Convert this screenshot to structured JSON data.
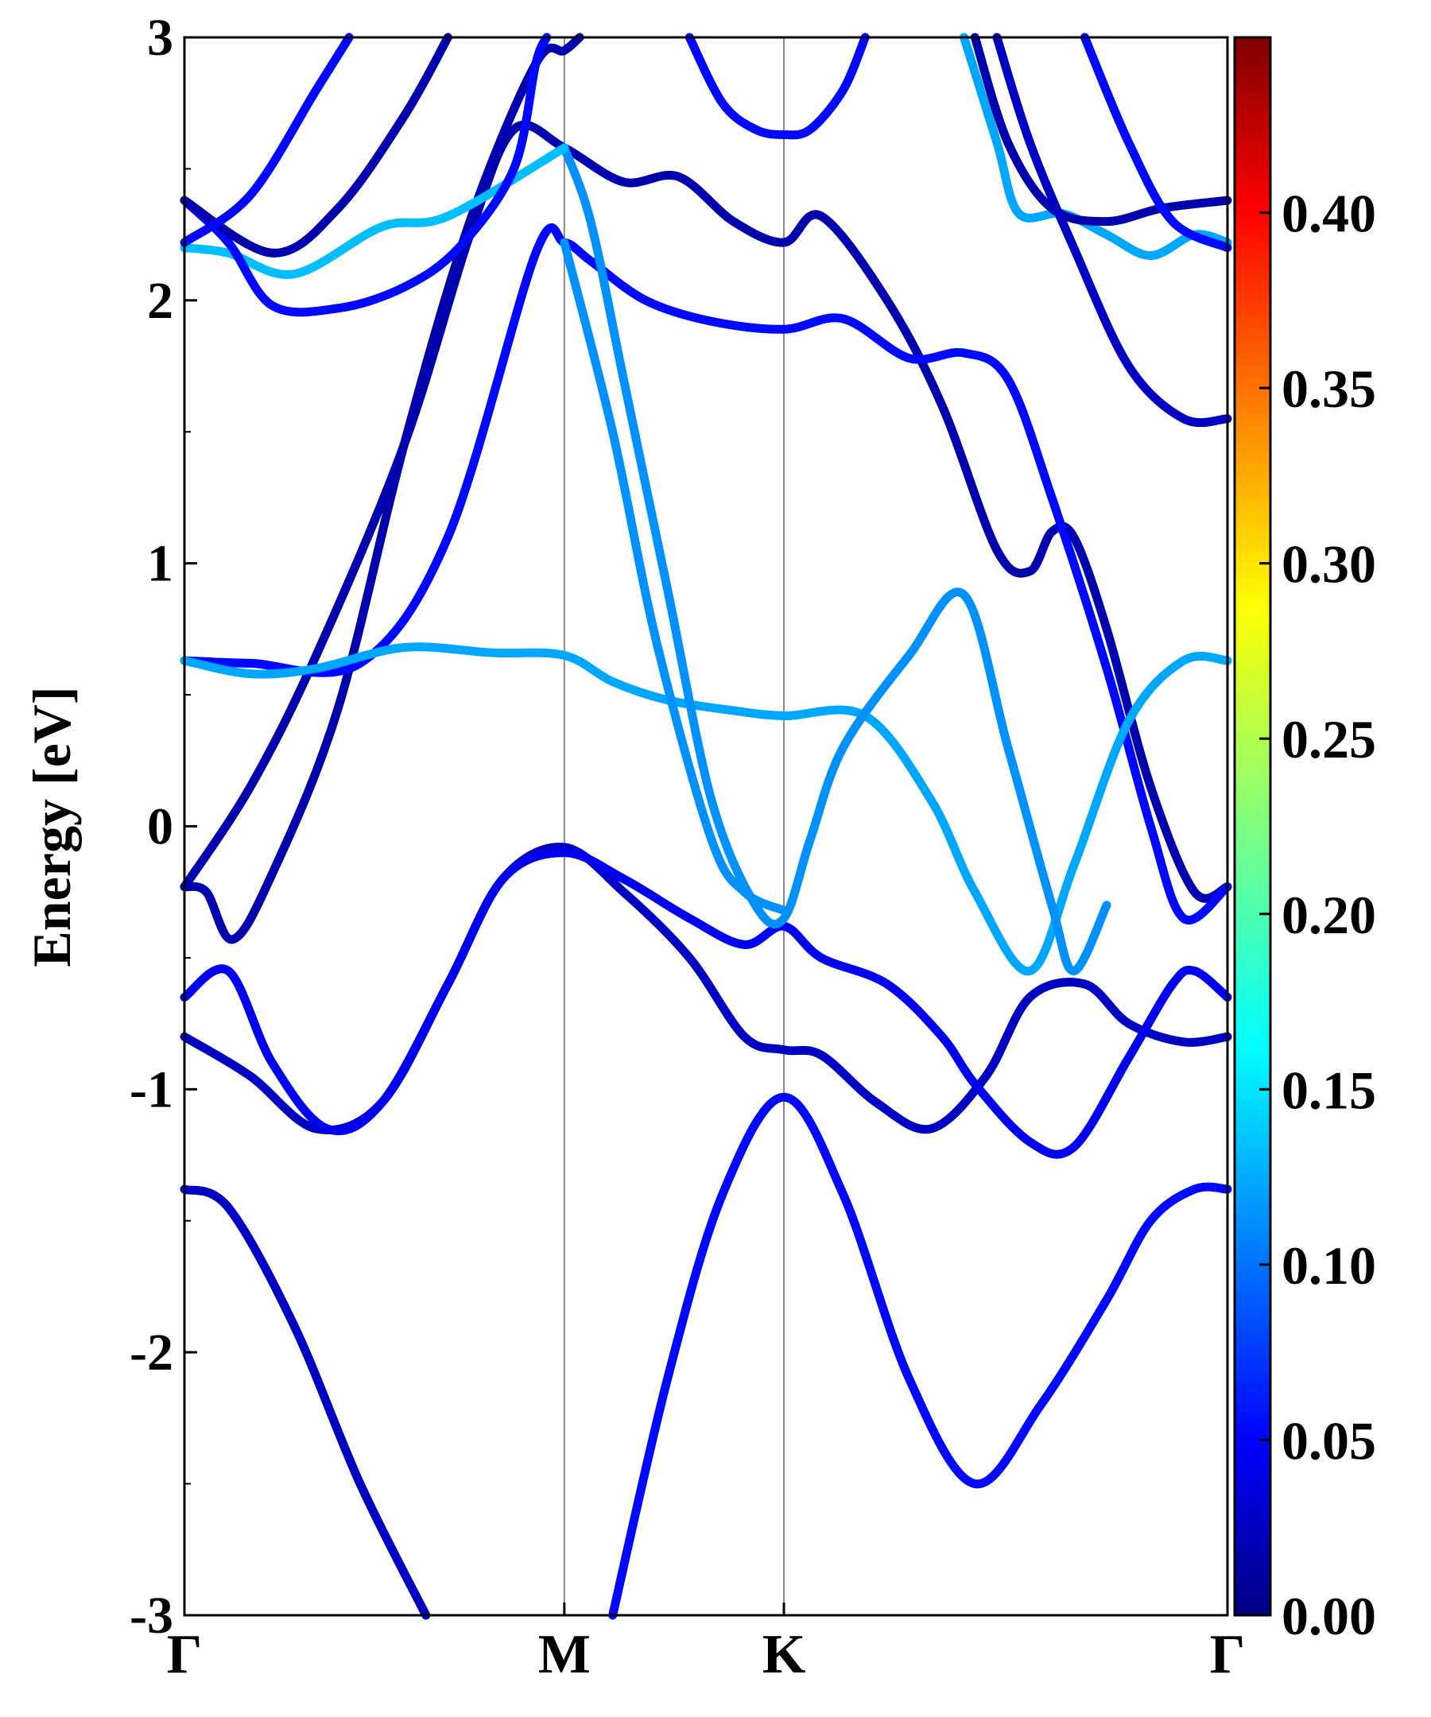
{
  "chart_data": {
    "type": "line",
    "title": "",
    "xlabel": "",
    "ylabel": "Energy [eV]",
    "ylim": [
      -3,
      3
    ],
    "yticks": [
      {
        "v": 3,
        "label": "3"
      },
      {
        "v": 2,
        "label": "2"
      },
      {
        "v": 1,
        "label": "1"
      },
      {
        "v": 0,
        "label": "0"
      },
      {
        "v": -1,
        "label": "-1"
      },
      {
        "v": -2,
        "label": "-2"
      },
      {
        "v": -3,
        "label": "-3"
      }
    ],
    "xlim": [
      0,
      4.75
    ],
    "high_symmetry_points": [
      {
        "label": "Γ",
        "x": 0
      },
      {
        "label": "M",
        "x": 1.73
      },
      {
        "label": "K",
        "x": 2.73
      },
      {
        "label": "Γ",
        "x": 4.75
      }
    ],
    "grid": false,
    "colorbar": {
      "colormap": "jet",
      "range": [
        0,
        0.45
      ],
      "ticks": [
        {
          "v": 0.0,
          "label": "0.00"
        },
        {
          "v": 0.05,
          "label": "0.05"
        },
        {
          "v": 0.1,
          "label": "0.10"
        },
        {
          "v": 0.15,
          "label": "0.15"
        },
        {
          "v": 0.2,
          "label": "0.20"
        },
        {
          "v": 0.25,
          "label": "0.25"
        },
        {
          "v": 0.3,
          "label": "0.30"
        },
        {
          "v": 0.35,
          "label": "0.35"
        },
        {
          "v": 0.4,
          "label": "0.40"
        }
      ]
    },
    "series": [
      {
        "points": [
          [
            0,
            -1.38
          ],
          [
            0.2,
            -1.45
          ],
          [
            0.5,
            -1.9
          ],
          [
            0.8,
            -2.5
          ],
          [
            1.1,
            -3.0
          ]
        ],
        "weight": 0.03
      },
      {
        "points": [
          [
            1.95,
            -3.0
          ],
          [
            2.2,
            -2.1
          ],
          [
            2.45,
            -1.4
          ],
          [
            2.73,
            -1.03
          ],
          [
            3.0,
            -1.4
          ],
          [
            3.3,
            -2.1
          ],
          [
            3.6,
            -2.5
          ],
          [
            3.9,
            -2.2
          ],
          [
            4.2,
            -1.8
          ],
          [
            4.4,
            -1.5
          ],
          [
            4.6,
            -1.38
          ],
          [
            4.75,
            -1.38
          ]
        ],
        "weight": 0.06
      },
      {
        "points": [
          [
            0,
            -0.8
          ],
          [
            0.3,
            -0.95
          ],
          [
            0.6,
            -1.15
          ],
          [
            0.9,
            -1.05
          ],
          [
            1.2,
            -0.6
          ],
          [
            1.45,
            -0.2
          ],
          [
            1.73,
            -0.08
          ],
          [
            2.0,
            -0.25
          ],
          [
            2.3,
            -0.5
          ],
          [
            2.55,
            -0.8
          ],
          [
            2.73,
            -0.85
          ],
          [
            2.9,
            -0.87
          ],
          [
            3.15,
            -1.05
          ],
          [
            3.4,
            -1.15
          ],
          [
            3.65,
            -0.95
          ],
          [
            3.85,
            -0.65
          ],
          [
            4.1,
            -0.6
          ],
          [
            4.3,
            -0.75
          ],
          [
            4.55,
            -0.82
          ],
          [
            4.75,
            -0.8
          ]
        ],
        "weight": 0.03
      },
      {
        "points": [
          [
            0,
            -0.65
          ],
          [
            0.2,
            -0.55
          ],
          [
            0.4,
            -0.9
          ],
          [
            0.65,
            -1.15
          ],
          [
            0.9,
            -1.05
          ],
          [
            1.2,
            -0.6
          ],
          [
            1.45,
            -0.2
          ],
          [
            1.73,
            -0.1
          ],
          [
            2.0,
            -0.2
          ],
          [
            2.3,
            -0.35
          ],
          [
            2.55,
            -0.45
          ],
          [
            2.73,
            -0.38
          ],
          [
            2.9,
            -0.5
          ],
          [
            3.2,
            -0.6
          ],
          [
            3.45,
            -0.8
          ],
          [
            3.6,
            -0.98
          ],
          [
            3.85,
            -1.2
          ],
          [
            4.05,
            -1.22
          ],
          [
            4.3,
            -0.88
          ],
          [
            4.5,
            -0.6
          ],
          [
            4.6,
            -0.55
          ],
          [
            4.75,
            -0.65
          ]
        ],
        "weight": 0.05
      },
      {
        "points": [
          [
            0,
            -0.23
          ],
          [
            0.1,
            -0.25
          ],
          [
            0.22,
            -0.43
          ],
          [
            0.4,
            -0.18
          ],
          [
            0.7,
            0.45
          ],
          [
            1.0,
            1.45
          ],
          [
            1.3,
            2.3
          ],
          [
            1.6,
            2.9
          ],
          [
            1.73,
            2.95
          ],
          [
            1.8,
            3.0
          ]
        ],
        "weight": 0.02
      },
      {
        "points": [
          [
            0,
            -0.23
          ],
          [
            0.3,
            0.15
          ],
          [
            0.6,
            0.65
          ],
          [
            1.0,
            1.45
          ],
          [
            1.3,
            2.25
          ],
          [
            1.5,
            2.65
          ],
          [
            1.73,
            2.58
          ],
          [
            2.0,
            2.45
          ],
          [
            2.25,
            2.47
          ],
          [
            2.5,
            2.3
          ],
          [
            2.73,
            2.22
          ],
          [
            2.9,
            2.32
          ],
          [
            3.2,
            2.0
          ],
          [
            3.45,
            1.6
          ],
          [
            3.7,
            1.05
          ],
          [
            3.85,
            0.97
          ],
          [
            3.95,
            1.12
          ],
          [
            4.05,
            1.1
          ],
          [
            4.2,
            0.75
          ],
          [
            4.4,
            0.15
          ],
          [
            4.6,
            -0.25
          ],
          [
            4.75,
            -0.23
          ]
        ],
        "weight": 0.02
      },
      {
        "points": [
          [
            0,
            0.63
          ],
          [
            0.3,
            0.62
          ],
          [
            0.8,
            0.62
          ],
          [
            1.2,
            1.1
          ],
          [
            1.6,
            2.18
          ],
          [
            1.73,
            2.22
          ],
          [
            1.85,
            2.15
          ],
          [
            2.1,
            2.0
          ],
          [
            2.4,
            1.92
          ],
          [
            2.73,
            1.89
          ],
          [
            3.0,
            1.93
          ],
          [
            3.3,
            1.78
          ],
          [
            3.55,
            1.8
          ],
          [
            3.75,
            1.7
          ],
          [
            3.95,
            1.25
          ],
          [
            4.2,
            0.6
          ],
          [
            4.4,
            0.0
          ],
          [
            4.55,
            -0.35
          ],
          [
            4.75,
            -0.23
          ]
        ],
        "weight": 0.06
      },
      {
        "points": [
          [
            0,
            0.63
          ],
          [
            0.3,
            0.58
          ],
          [
            0.6,
            0.6
          ],
          [
            1.0,
            0.68
          ],
          [
            1.4,
            0.66
          ],
          [
            1.73,
            0.65
          ],
          [
            1.95,
            0.55
          ],
          [
            2.2,
            0.48
          ],
          [
            2.5,
            0.44
          ],
          [
            2.73,
            0.42
          ],
          [
            3.1,
            0.42
          ],
          [
            3.4,
            0.1
          ],
          [
            3.6,
            -0.25
          ],
          [
            3.85,
            -0.55
          ],
          [
            4.05,
            -0.15
          ],
          [
            4.3,
            0.4
          ],
          [
            4.55,
            0.63
          ],
          [
            4.75,
            0.63
          ]
        ],
        "weight": 0.13
      },
      {
        "points": [
          [
            1.73,
            2.58
          ],
          [
            1.85,
            2.3
          ],
          [
            2.0,
            1.7
          ],
          [
            2.2,
            0.9
          ],
          [
            2.4,
            0.1
          ],
          [
            2.6,
            -0.3
          ],
          [
            2.73,
            -0.35
          ],
          [
            2.85,
            -0.05
          ],
          [
            3.0,
            0.3
          ],
          [
            3.3,
            0.65
          ],
          [
            3.55,
            0.88
          ],
          [
            3.75,
            0.3
          ],
          [
            3.95,
            -0.3
          ],
          [
            4.05,
            -0.55
          ],
          [
            4.2,
            -0.3
          ]
        ],
        "weight": 0.12
      },
      {
        "points": [
          [
            1.73,
            2.22
          ],
          [
            1.95,
            1.5
          ],
          [
            2.15,
            0.7
          ],
          [
            2.4,
            -0.05
          ],
          [
            2.55,
            -0.25
          ],
          [
            2.73,
            -0.32
          ]
        ],
        "weight": 0.12
      },
      {
        "points": [
          [
            0,
            2.2
          ],
          [
            0.2,
            2.18
          ],
          [
            0.5,
            2.1
          ],
          [
            0.9,
            2.28
          ],
          [
            1.2,
            2.32
          ],
          [
            1.73,
            2.58
          ]
        ],
        "weight": 0.14
      },
      {
        "points": [
          [
            0,
            2.38
          ],
          [
            0.2,
            2.22
          ],
          [
            0.4,
            1.98
          ],
          [
            0.7,
            1.97
          ],
          [
            1.0,
            2.05
          ],
          [
            1.25,
            2.2
          ],
          [
            1.5,
            2.5
          ],
          [
            1.6,
            2.9
          ],
          [
            1.65,
            3.0
          ]
        ],
        "weight": 0.06
      },
      {
        "points": [
          [
            0,
            2.38
          ],
          [
            0.4,
            2.18
          ],
          [
            0.7,
            2.35
          ],
          [
            1.0,
            2.7
          ],
          [
            1.2,
            3.0
          ]
        ],
        "weight": 0.02
      },
      {
        "points": [
          [
            0,
            2.22
          ],
          [
            0.3,
            2.4
          ],
          [
            0.6,
            2.8
          ],
          [
            0.75,
            3.0
          ]
        ],
        "weight": 0.06
      },
      {
        "points": [
          [
            2.3,
            3.0
          ],
          [
            2.45,
            2.75
          ],
          [
            2.6,
            2.65
          ],
          [
            2.73,
            2.63
          ],
          [
            2.85,
            2.65
          ],
          [
            3.0,
            2.8
          ],
          [
            3.1,
            3.0
          ]
        ],
        "weight": 0.06
      },
      {
        "points": [
          [
            3.55,
            3.0
          ],
          [
            3.7,
            2.6
          ],
          [
            3.8,
            2.33
          ],
          [
            4.0,
            2.33
          ],
          [
            4.2,
            2.25
          ],
          [
            4.4,
            2.17
          ],
          [
            4.6,
            2.25
          ],
          [
            4.75,
            2.22
          ]
        ],
        "weight": 0.13
      },
      {
        "points": [
          [
            3.6,
            3.0
          ],
          [
            3.75,
            2.6
          ],
          [
            3.95,
            2.35
          ],
          [
            4.2,
            2.3
          ],
          [
            4.45,
            2.35
          ],
          [
            4.75,
            2.38
          ]
        ],
        "weight": 0.02
      },
      {
        "points": [
          [
            3.7,
            3.0
          ],
          [
            3.85,
            2.6
          ],
          [
            4.05,
            2.2
          ],
          [
            4.3,
            1.75
          ],
          [
            4.55,
            1.55
          ],
          [
            4.75,
            1.55
          ]
        ],
        "weight": 0.03
      },
      {
        "points": [
          [
            4.1,
            3.0
          ],
          [
            4.3,
            2.6
          ],
          [
            4.5,
            2.3
          ],
          [
            4.75,
            2.2
          ]
        ],
        "weight": 0.06
      }
    ]
  }
}
